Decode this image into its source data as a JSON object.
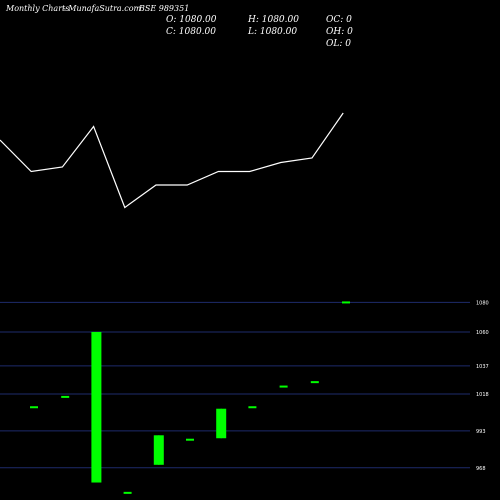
{
  "header": {
    "title": "Monthly Charts",
    "source": "- MunafaSutra.com",
    "symbol": "BSE 989351"
  },
  "ohlc": {
    "open": "O: 1080.00",
    "high": "H: 1080.00",
    "close": "C: 1080.00",
    "low": "L: 1080.00",
    "oc": "OC: 0",
    "oh": "OH: 0",
    "ol": "OL: 0"
  },
  "colors": {
    "background": "#000000",
    "up": "#00ff00",
    "down": "#ff0000",
    "grid": "#1e2b6b",
    "line": "#ffffff"
  },
  "chart_data": {
    "type": "candlestick",
    "price_axis": {
      "ticks": [
        1080,
        1060,
        1037,
        1018,
        993,
        968
      ],
      "labels": [
        "1080",
        "1060",
        "1037",
        "1018",
        "993",
        "968"
      ],
      "range": [
        957,
        1083
      ]
    },
    "line_series": {
      "values": [
        40,
        33,
        34,
        43,
        25,
        30,
        30,
        33,
        33,
        35,
        36,
        46
      ],
      "range": [
        20,
        50
      ]
    },
    "candles": [
      {
        "open": 1009,
        "high": 1009,
        "low": 1009,
        "close": 1009,
        "color": "up"
      },
      {
        "open": 1016,
        "high": 1016,
        "low": 1016,
        "close": 1016,
        "color": "up"
      },
      {
        "open": 958,
        "high": 1060,
        "low": 958,
        "close": 1060,
        "color": "up"
      },
      {
        "open": 951,
        "high": 951,
        "low": 951,
        "close": 951,
        "color": "up"
      },
      {
        "open": 970,
        "high": 990,
        "low": 970,
        "close": 990,
        "color": "up"
      },
      {
        "open": 987,
        "high": 987,
        "low": 987,
        "close": 987,
        "color": "up"
      },
      {
        "open": 988,
        "high": 1008,
        "low": 988,
        "close": 1008,
        "color": "up"
      },
      {
        "open": 1009,
        "high": 1009,
        "low": 1009,
        "close": 1009,
        "color": "up"
      },
      {
        "open": 1023,
        "high": 1023,
        "low": 1023,
        "close": 1023,
        "color": "up"
      },
      {
        "open": 1026,
        "high": 1026,
        "low": 1026,
        "close": 1026,
        "color": "up"
      },
      {
        "open": 1080,
        "high": 1080,
        "low": 1080,
        "close": 1080,
        "color": "up"
      }
    ]
  }
}
